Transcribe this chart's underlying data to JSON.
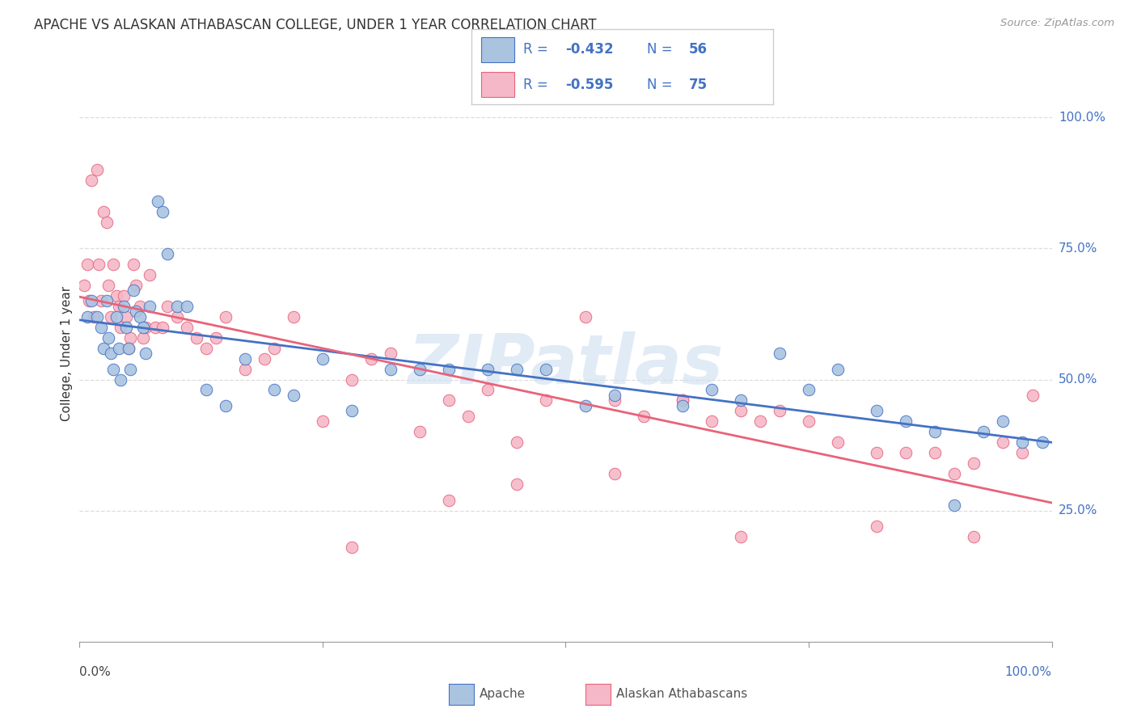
{
  "title": "APACHE VS ALASKAN ATHABASCAN COLLEGE, UNDER 1 YEAR CORRELATION CHART",
  "source": "Source: ZipAtlas.com",
  "ylabel": "College, Under 1 year",
  "legend_apache_R": "-0.432",
  "legend_apache_N": "56",
  "legend_alaskan_R": "-0.595",
  "legend_alaskan_N": "75",
  "apache_color": "#aac4e0",
  "alaskan_color": "#f5b8c8",
  "apache_line_color": "#4472c4",
  "alaskan_line_color": "#e8637a",
  "legend_text_color": "#4472c4",
  "watermark": "ZIPatlas",
  "watermark_color": "#cddff0",
  "background_color": "#ffffff",
  "grid_color": "#dddddd",
  "apache_x": [
    0.008,
    0.012,
    0.018,
    0.022,
    0.025,
    0.028,
    0.03,
    0.032,
    0.035,
    0.038,
    0.04,
    0.042,
    0.045,
    0.048,
    0.05,
    0.052,
    0.055,
    0.058,
    0.062,
    0.065,
    0.068,
    0.072,
    0.08,
    0.085,
    0.09,
    0.1,
    0.11,
    0.13,
    0.15,
    0.17,
    0.2,
    0.22,
    0.25,
    0.28,
    0.32,
    0.35,
    0.38,
    0.42,
    0.45,
    0.48,
    0.52,
    0.55,
    0.62,
    0.65,
    0.68,
    0.72,
    0.75,
    0.78,
    0.82,
    0.85,
    0.88,
    0.9,
    0.93,
    0.95,
    0.97,
    0.99
  ],
  "apache_y": [
    0.62,
    0.65,
    0.62,
    0.6,
    0.56,
    0.65,
    0.58,
    0.55,
    0.52,
    0.62,
    0.56,
    0.5,
    0.64,
    0.6,
    0.56,
    0.52,
    0.67,
    0.63,
    0.62,
    0.6,
    0.55,
    0.64,
    0.84,
    0.82,
    0.74,
    0.64,
    0.64,
    0.48,
    0.45,
    0.54,
    0.48,
    0.47,
    0.54,
    0.44,
    0.52,
    0.52,
    0.52,
    0.52,
    0.52,
    0.52,
    0.45,
    0.47,
    0.45,
    0.48,
    0.46,
    0.55,
    0.48,
    0.52,
    0.44,
    0.42,
    0.4,
    0.26,
    0.4,
    0.42,
    0.38,
    0.38
  ],
  "alaskan_x": [
    0.005,
    0.008,
    0.01,
    0.012,
    0.015,
    0.018,
    0.02,
    0.022,
    0.025,
    0.028,
    0.03,
    0.032,
    0.035,
    0.038,
    0.04,
    0.042,
    0.045,
    0.048,
    0.05,
    0.052,
    0.055,
    0.058,
    0.062,
    0.065,
    0.068,
    0.072,
    0.078,
    0.085,
    0.09,
    0.1,
    0.11,
    0.12,
    0.13,
    0.14,
    0.15,
    0.17,
    0.19,
    0.2,
    0.22,
    0.25,
    0.28,
    0.3,
    0.32,
    0.35,
    0.38,
    0.4,
    0.42,
    0.45,
    0.48,
    0.52,
    0.55,
    0.58,
    0.62,
    0.65,
    0.68,
    0.7,
    0.72,
    0.75,
    0.78,
    0.82,
    0.85,
    0.88,
    0.9,
    0.92,
    0.95,
    0.97,
    0.98,
    0.55,
    0.62,
    0.38,
    0.28,
    0.45,
    0.68,
    0.82,
    0.92
  ],
  "alaskan_y": [
    0.68,
    0.72,
    0.65,
    0.88,
    0.62,
    0.9,
    0.72,
    0.65,
    0.82,
    0.8,
    0.68,
    0.62,
    0.72,
    0.66,
    0.64,
    0.6,
    0.66,
    0.62,
    0.56,
    0.58,
    0.72,
    0.68,
    0.64,
    0.58,
    0.6,
    0.7,
    0.6,
    0.6,
    0.64,
    0.62,
    0.6,
    0.58,
    0.56,
    0.58,
    0.62,
    0.52,
    0.54,
    0.56,
    0.62,
    0.42,
    0.5,
    0.54,
    0.55,
    0.4,
    0.46,
    0.43,
    0.48,
    0.38,
    0.46,
    0.62,
    0.46,
    0.43,
    0.46,
    0.42,
    0.44,
    0.42,
    0.44,
    0.42,
    0.38,
    0.36,
    0.36,
    0.36,
    0.32,
    0.34,
    0.38,
    0.36,
    0.47,
    0.32,
    0.46,
    0.27,
    0.18,
    0.3,
    0.2,
    0.22,
    0.2
  ],
  "xlim": [
    0.0,
    1.0
  ],
  "ylim": [
    0.0,
    1.1
  ],
  "yticks": [
    0.25,
    0.5,
    0.75,
    1.0
  ],
  "ytick_labels": [
    "25.0%",
    "50.0%",
    "75.0%",
    "100.0%"
  ]
}
